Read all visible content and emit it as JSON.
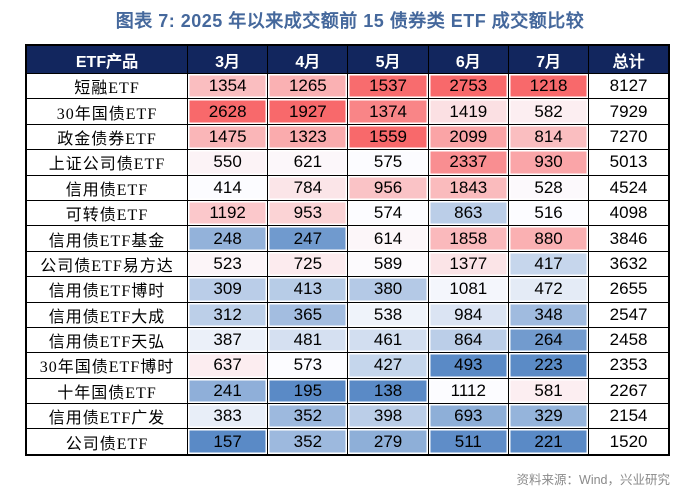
{
  "title": "图表 7: 2025 年以来成交额前 15 债券类 ETF 成交额比较",
  "source": "资料来源：Wind，兴业研究",
  "colors": {
    "title_color": "#45689C",
    "header_bg": "#12265E",
    "header_text": "#FFFFFF",
    "grid_border": "#000000",
    "source_text": "#8A8A8A"
  },
  "chart_data": {
    "type": "table",
    "columns": [
      "ETF产品",
      "3月",
      "4月",
      "5月",
      "6月",
      "7月",
      "总计"
    ],
    "rows": [
      {
        "label": "短融ETF",
        "values": [
          1354,
          1265,
          1537,
          2753,
          1218
        ],
        "total": 8127
      },
      {
        "label": "30年国债ETF",
        "values": [
          2628,
          1927,
          1374,
          1419,
          582
        ],
        "total": 7929
      },
      {
        "label": "政金债券ETF",
        "values": [
          1475,
          1323,
          1559,
          2099,
          814
        ],
        "total": 7270
      },
      {
        "label": "上证公司债ETF",
        "values": [
          550,
          621,
          575,
          2337,
          930
        ],
        "total": 5013
      },
      {
        "label": "信用债ETF",
        "values": [
          414,
          784,
          956,
          1843,
          528
        ],
        "total": 4524
      },
      {
        "label": "可转债ETF",
        "values": [
          1192,
          953,
          574,
          863,
          516
        ],
        "total": 4098
      },
      {
        "label": "信用债ETF基金",
        "values": [
          248,
          247,
          614,
          1858,
          880
        ],
        "total": 3846
      },
      {
        "label": "公司债ETF易方达",
        "values": [
          523,
          725,
          589,
          1377,
          417
        ],
        "total": 3632
      },
      {
        "label": "信用债ETF博时",
        "values": [
          309,
          413,
          380,
          1081,
          472
        ],
        "total": 2655
      },
      {
        "label": "信用债ETF大成",
        "values": [
          312,
          365,
          538,
          984,
          348
        ],
        "total": 2547
      },
      {
        "label": "信用债ETF天弘",
        "values": [
          387,
          481,
          461,
          864,
          264
        ],
        "total": 2458
      },
      {
        "label": "30年国债ETF博时",
        "values": [
          637,
          573,
          427,
          493,
          223
        ],
        "total": 2353
      },
      {
        "label": "十年国债ETF",
        "values": [
          241,
          195,
          138,
          1112,
          581
        ],
        "total": 2267
      },
      {
        "label": "信用债ETF广发",
        "values": [
          383,
          352,
          398,
          693,
          329
        ],
        "total": 2154
      },
      {
        "label": "公司债ETF",
        "values": [
          157,
          352,
          279,
          511,
          221
        ],
        "total": 1520
      }
    ],
    "conditional_formatting": {
      "scope": "per-month-column",
      "scale": "3-color",
      "midpoint": "50th-percentile",
      "min_color": "#5A8AC6",
      "mid_color": "#FCFCFF",
      "max_color": "#F8696B"
    },
    "layout_hints": {
      "header": "dark navy band, white bold text",
      "total_column_background": "#FFFFFF",
      "units": "成交额"
    }
  }
}
